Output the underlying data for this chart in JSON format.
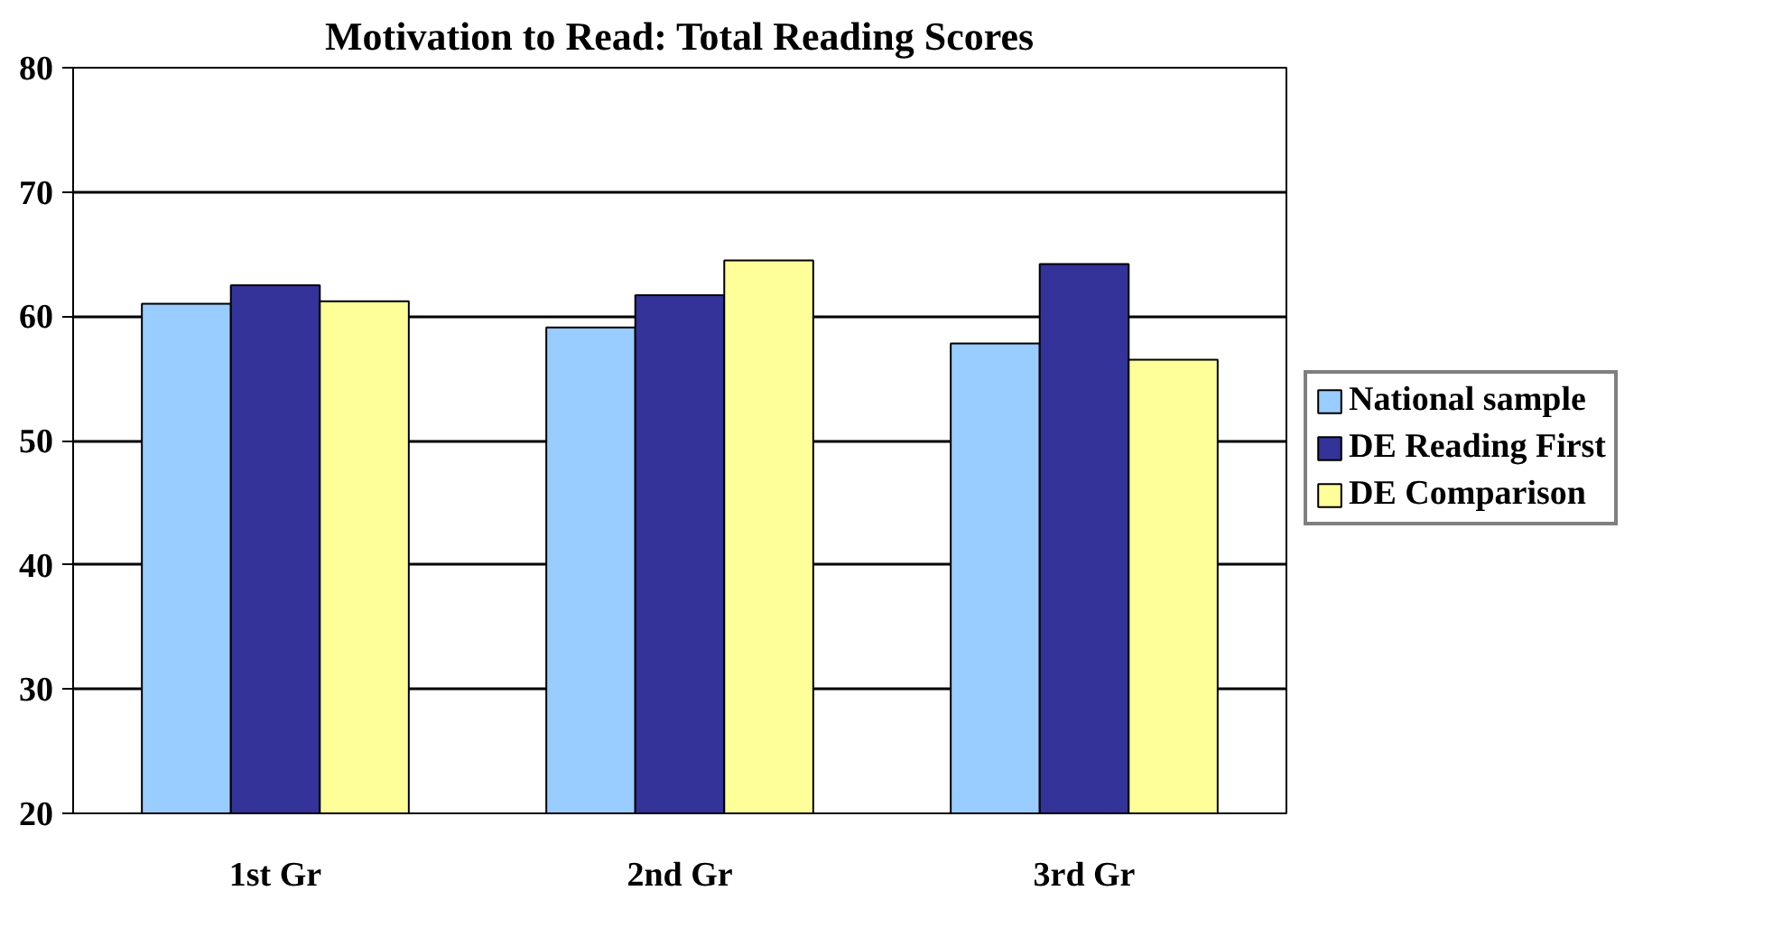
{
  "chart_data": {
    "type": "bar",
    "title": "Motivation to Read: Total Reading Scores",
    "categories": [
      "1st Gr",
      "2nd Gr",
      "3rd Gr"
    ],
    "series": [
      {
        "name": "National sample",
        "color": "#99ccff",
        "values": [
          61.0,
          59.1,
          57.8
        ]
      },
      {
        "name": "DE Reading First",
        "color": "#333399",
        "values": [
          62.5,
          61.7,
          64.2
        ]
      },
      {
        "name": "DE Comparison",
        "color": "#ffff99",
        "values": [
          61.2,
          64.5,
          56.5
        ]
      }
    ],
    "ylim": [
      20,
      80
    ],
    "yticks": [
      20,
      30,
      40,
      50,
      60,
      70,
      80
    ],
    "grid": "y",
    "legend": "right"
  }
}
